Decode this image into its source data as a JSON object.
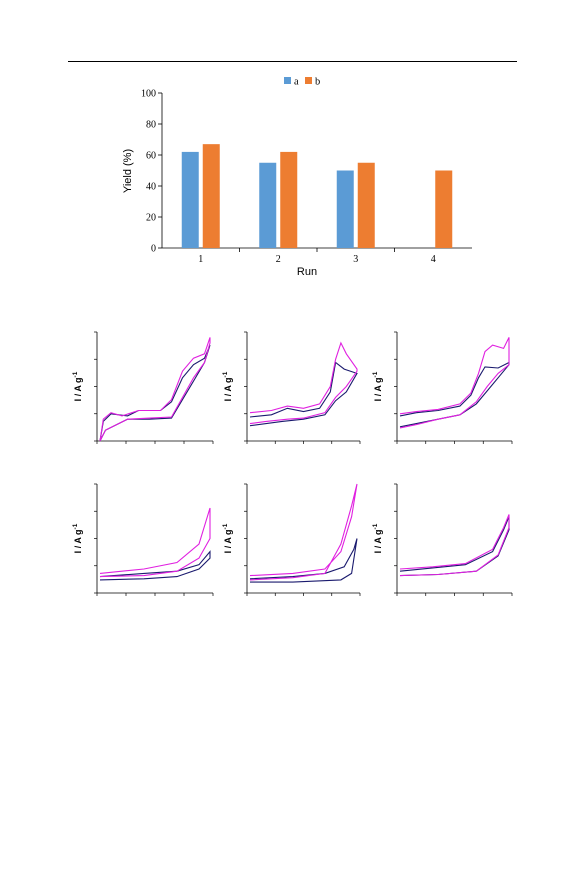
{
  "colors": {
    "series_a": "#5b9bd5",
    "series_b": "#ed7d31",
    "axis": "#000000",
    "cv_magenta": "#e020e0",
    "cv_navy": "#1a1a6e"
  },
  "chart_data": [
    {
      "type": "bar",
      "categories": [
        "1",
        "2",
        "3",
        "4"
      ],
      "series": [
        {
          "name": "a",
          "values": [
            62,
            55,
            50,
            0
          ]
        },
        {
          "name": "b",
          "values": [
            67,
            62,
            55,
            50
          ]
        }
      ],
      "xlabel": "Run",
      "ylabel": "Yield (%)",
      "ylim": [
        0,
        100
      ],
      "yticks": [
        "0",
        "20",
        "40",
        "60",
        "80",
        "100"
      ],
      "legend": "top-center",
      "grid": false
    },
    {
      "type": "line",
      "ylabel": "I / A g",
      "ylabel_sup": "-1",
      "series": [
        {
          "values": []
        },
        {
          "values": []
        }
      ]
    },
    {
      "type": "line",
      "ylabel": "I / A g",
      "ylabel_sup": "-1",
      "series": [
        {
          "values": []
        },
        {
          "values": []
        }
      ]
    },
    {
      "type": "line",
      "ylabel": "I / A g",
      "ylabel_sup": "-1",
      "series": [
        {
          "values": []
        },
        {
          "values": []
        }
      ]
    },
    {
      "type": "line",
      "ylabel": "I / A g",
      "ylabel_sup": "-1",
      "series": [
        {
          "values": []
        },
        {
          "values": []
        }
      ]
    },
    {
      "type": "line",
      "ylabel": "I / A g",
      "ylabel_sup": "-1",
      "series": [
        {
          "values": []
        },
        {
          "values": []
        }
      ]
    },
    {
      "type": "line",
      "ylabel": "I / A g",
      "ylabel_sup": "-1",
      "series": [
        {
          "values": []
        },
        {
          "values": []
        }
      ]
    }
  ]
}
